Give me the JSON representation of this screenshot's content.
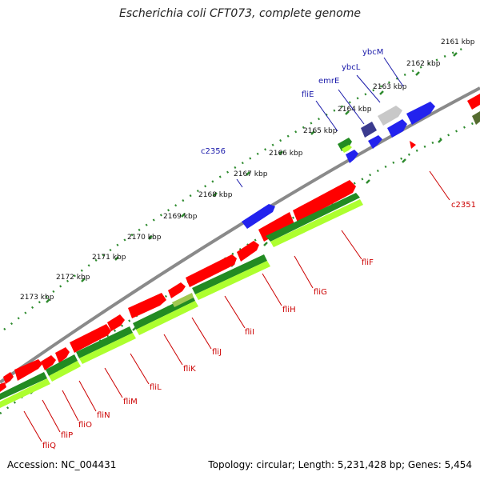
{
  "header": {
    "title": "Escherichia coli CFT073, complete genome"
  },
  "footer": {
    "accession": "Accession: NC_004431",
    "topology": "Topology: circular; Length: 5,231,428 bp; Genes: 5,454"
  },
  "colors": {
    "backbone": "#8a8a8a",
    "forward_cds": "#ff0000",
    "reverse_cds": "#2222ee",
    "dark_green": "#228b22",
    "light_green": "#adff2f",
    "grey_cds": "#c8c8c8",
    "navy_cds": "#3b3b8f",
    "dotted_ring": "#2e8b2e"
  },
  "scale_labels": [
    "2161 kbp",
    "2162 kbp",
    "2163 kbp",
    "2164 kbp",
    "2165 kbp",
    "2166 kbp",
    "2167 kbp",
    "2168 kbp",
    "2169 kbp",
    "2170 kbp",
    "2171 kbp",
    "2172 kbp",
    "2173 kbp"
  ],
  "gene_labels": {
    "reverse": [
      "c2356",
      "fliE",
      "emrE",
      "ybcL",
      "ybcM"
    ],
    "forward": [
      "c2351",
      "fliF",
      "fliG",
      "fliH",
      "fliI",
      "fliJ",
      "fliK",
      "fliL",
      "fliM",
      "fliN",
      "fliO",
      "fliP",
      "fliQ"
    ]
  }
}
